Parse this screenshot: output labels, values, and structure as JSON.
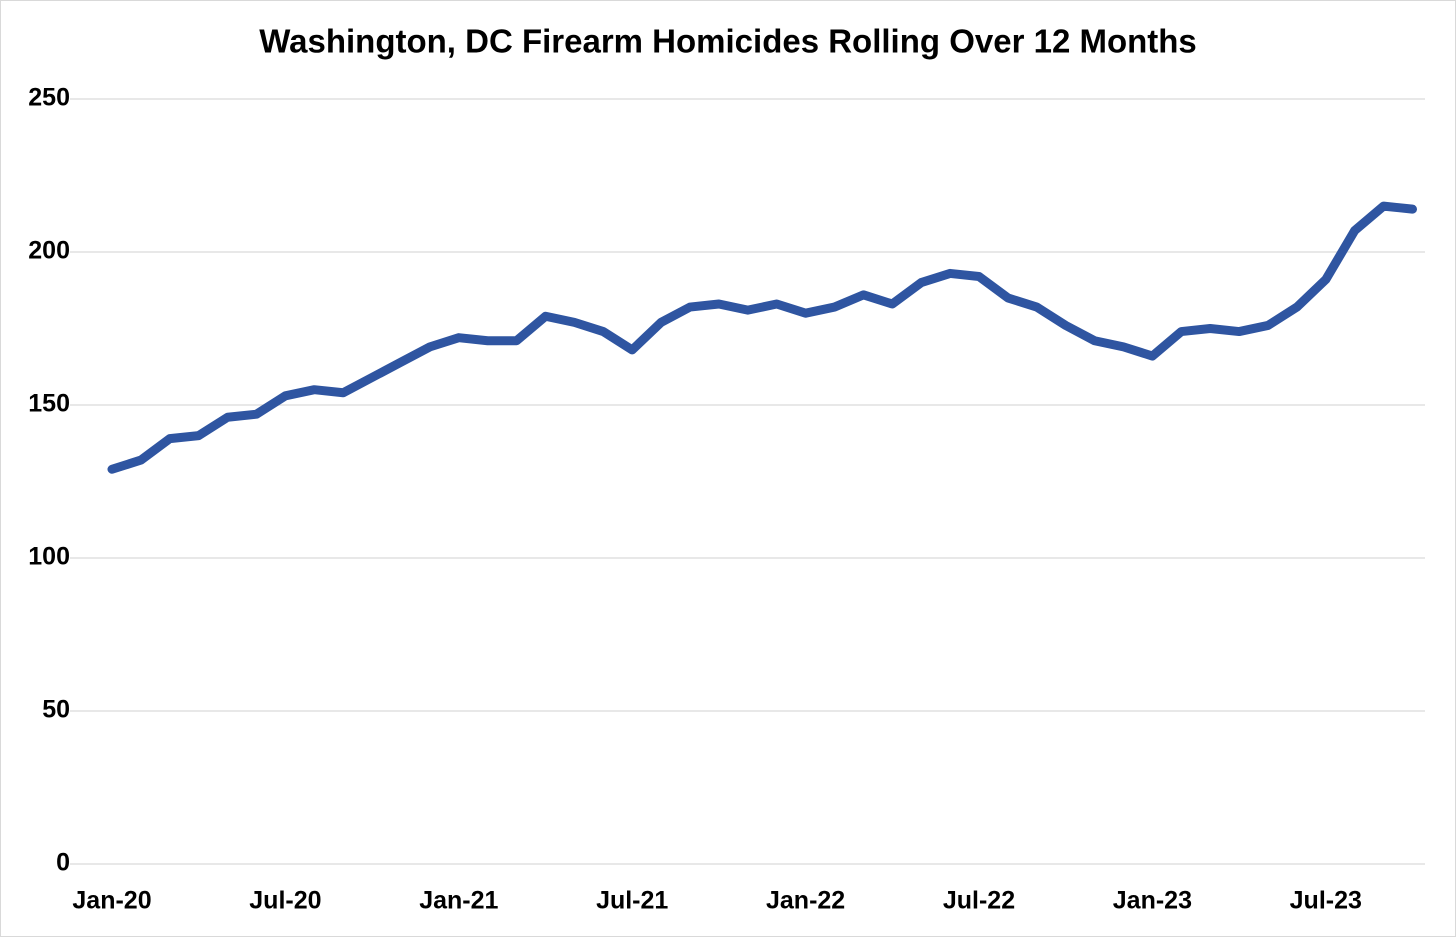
{
  "chart_data": {
    "type": "line",
    "title": "Washington, DC Firearm Homicides Rolling Over 12 Months",
    "categories": [
      "Jan-20",
      null,
      null,
      null,
      null,
      null,
      "Jul-20",
      null,
      null,
      null,
      null,
      null,
      "Jan-21",
      null,
      null,
      null,
      null,
      null,
      "Jul-21",
      null,
      null,
      null,
      null,
      null,
      "Jan-22",
      null,
      null,
      null,
      null,
      null,
      "Jul-22",
      null,
      null,
      null,
      null,
      null,
      "Jan-23",
      null,
      null,
      null,
      null,
      null,
      "Jul-23",
      null,
      null,
      null
    ],
    "series": [
      {
        "name": "Firearm Homicides",
        "color": "#2f55a1",
        "values": [
          129,
          132,
          139,
          140,
          146,
          147,
          153,
          155,
          154,
          159,
          164,
          169,
          172,
          171,
          171,
          179,
          177,
          174,
          168,
          177,
          182,
          183,
          181,
          183,
          180,
          182,
          186,
          183,
          190,
          193,
          192,
          185,
          182,
          176,
          171,
          169,
          166,
          174,
          175,
          174,
          176,
          182,
          191,
          207,
          215,
          214
        ]
      }
    ],
    "ylim": [
      0,
      250
    ],
    "yticks": [
      0,
      50,
      100,
      150,
      200,
      250
    ],
    "grid": true
  }
}
